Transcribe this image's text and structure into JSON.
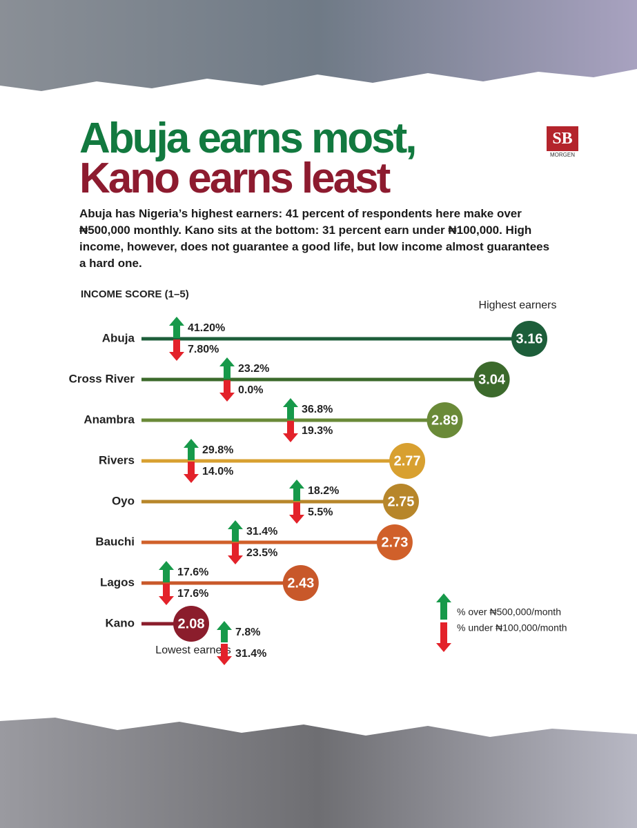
{
  "header": {
    "title_line1": "Abuja earns most,",
    "title_line2": "Kano earns least",
    "logo": "SB",
    "logo_sub": "MORGEN",
    "intro": "Abuja has Nigeria’s highest earners: 41 percent of respondents here make over ₦500,000 monthly. Kano sits at the bottom: 31 percent earn under ₦100,000. High income, however, does not guarantee a good life, but low income almost guarantees a hard one."
  },
  "chart_data": {
    "type": "lollipop",
    "axis_label": "INCOME SCORE (1–5)",
    "annotations": {
      "top": "Highest earners",
      "bottom": "Lowest earners"
    },
    "categories": [
      "Abuja",
      "Cross River",
      "Anambra",
      "Rivers",
      "Oyo",
      "Bauchi",
      "Lagos",
      "Kano"
    ],
    "values": [
      3.16,
      3.04,
      2.89,
      2.77,
      2.75,
      2.73,
      2.43,
      2.08
    ],
    "colors": [
      "#1d5e3a",
      "#3c6a2c",
      "#6a8a38",
      "#d8a030",
      "#b7862a",
      "#d0602a",
      "#c8582a",
      "#8b1d2c"
    ],
    "series": [
      {
        "name": "% over ₦500,000/month",
        "color": "#17994a",
        "values": [
          41.2,
          23.2,
          36.8,
          29.8,
          18.2,
          31.4,
          17.6,
          7.8
        ],
        "value_labels": [
          "41.20%",
          "23.2%",
          "36.8%",
          "29.8%",
          "18.2%",
          "31.4%",
          "17.6%",
          "7.8%"
        ]
      },
      {
        "name": "% under ₦100,000/month",
        "color": "#e3222a",
        "values": [
          7.8,
          0.0,
          19.3,
          14.0,
          5.5,
          23.5,
          17.6,
          31.4
        ],
        "value_labels": [
          "7.80%",
          "0.0%",
          "19.3%",
          "14.0%",
          "5.5%",
          "23.5%",
          "17.6%",
          "31.4%"
        ]
      }
    ]
  }
}
